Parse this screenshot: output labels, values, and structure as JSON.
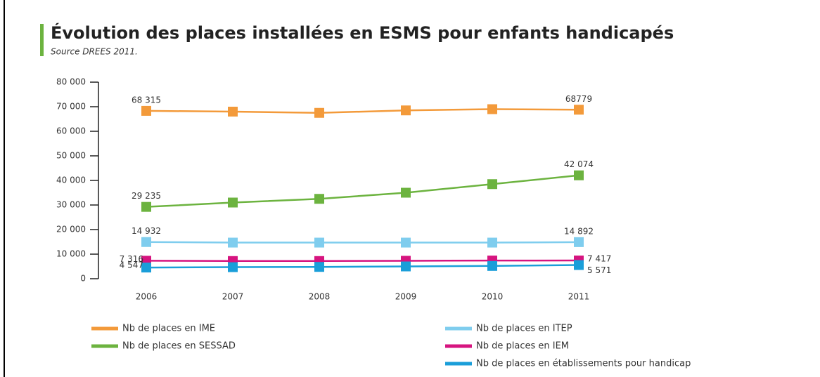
{
  "chart_data": {
    "type": "line",
    "title": "Évolution des places installées en ESMS pour enfants handicapés",
    "subtitle": "Source DREES 2011.",
    "categories": [
      "2006",
      "2007",
      "2008",
      "2009",
      "2010",
      "2011"
    ],
    "ylim": [
      0,
      80000
    ],
    "yticks": [
      0,
      {
        "value": 10000,
        "label": "10 000"
      },
      {
        "value": 20000,
        "label": "20 000"
      },
      {
        "value": 30000,
        "label": "30 000"
      },
      {
        "value": 40000,
        "label": "40 000"
      },
      {
        "value": 50000,
        "label": "50 000"
      },
      {
        "value": 60000,
        "label": "60 000"
      },
      {
        "value": 70000,
        "label": "70 000"
      },
      {
        "value": 80000,
        "label": "80 000"
      }
    ],
    "legend": "bottom",
    "series": [
      {
        "name": "Nb de places en IME",
        "color": "#f39a3a",
        "values": [
          68315,
          68000,
          67500,
          68500,
          69000,
          68779
        ],
        "value_labels": [
          "68 315",
          null,
          null,
          null,
          null,
          "68779"
        ]
      },
      {
        "name": "Nb de places en SESSAD",
        "color": "#6cb33f",
        "values": [
          29235,
          31000,
          32500,
          35000,
          38500,
          42074
        ],
        "value_labels": [
          "29 235",
          null,
          null,
          null,
          null,
          "42 074"
        ]
      },
      {
        "name": "Nb de places en ITEP",
        "color": "#7fcdee",
        "values": [
          14932,
          14700,
          14700,
          14700,
          14700,
          14892
        ],
        "value_labels": [
          "14 932",
          null,
          null,
          null,
          null,
          "14 892"
        ]
      },
      {
        "name": "Nb de places en IEM",
        "color": "#d6147f",
        "values": [
          7316,
          7200,
          7200,
          7300,
          7400,
          7417
        ],
        "value_labels": [
          "7 316",
          null,
          null,
          null,
          null,
          "7 417"
        ]
      },
      {
        "name": "Nb de places en établissements pour handicap",
        "color": "#1a9ed9",
        "values": [
          4547,
          4700,
          4800,
          5000,
          5200,
          5571
        ],
        "value_labels": [
          "4 547",
          null,
          null,
          null,
          null,
          "5 571"
        ]
      }
    ]
  }
}
